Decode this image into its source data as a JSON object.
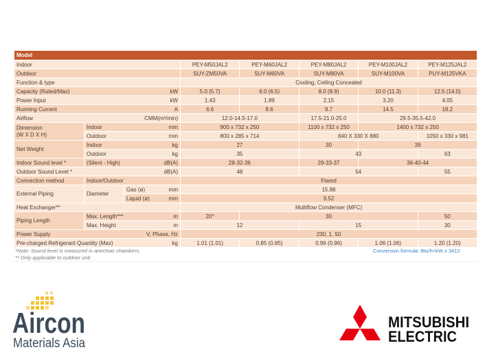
{
  "table": {
    "header": "Model",
    "rows": [
      {
        "label": "Indoor",
        "values": [
          "PEY-M50JAL2",
          "PEY-M60JAL2",
          "PEY-M80JAL2",
          "PEY-M100JAL2",
          "PEY-M125JAL2"
        ]
      },
      {
        "label": "Outdoor",
        "values": [
          "SUY-ZM50VA",
          "SUY-M60VA",
          "SUY-M80VA",
          "SUY-M100VA",
          "PUY-M125VKA"
        ]
      },
      {
        "label": "Function & type",
        "values": [
          "Cooling, Ceiling Concealed",
          null,
          null,
          null,
          null
        ]
      },
      {
        "label": "Capacity (Rated/Max)",
        "unit": "kW",
        "values": [
          "5.0 (5.7)",
          "6.0 (6.5)",
          "8.0 (8.9)",
          "10.0 (11.3)",
          "12.5 (14.0)"
        ]
      },
      {
        "label": "Power Input",
        "unit": "kW",
        "values": [
          "1.43",
          "1.89",
          "2.15",
          "3.20",
          "4.05"
        ]
      },
      {
        "label": "Running Current",
        "unit": "A",
        "values": [
          "6.6",
          "8.6",
          "9.7",
          "14.5",
          "18.2"
        ]
      },
      {
        "label": "Airflow",
        "unit": "CMM(m³/min)",
        "values": [
          "12.0-14.5-17.0",
          null,
          "17.5-21.0-25.0",
          "29.5-35.5-42.0",
          null
        ]
      },
      {
        "label": "Dimension\n(W X D X H)",
        "sub": "Indoor",
        "unit": "mm",
        "values": [
          "900 x 732 x 250",
          null,
          "1100 x 732 x 250",
          "1400 x 732 x 250",
          null
        ]
      },
      {
        "sub": "Outdoor",
        "unit": "mm",
        "values": [
          "800 x 285 x 714",
          null,
          "840 X 330 X 880",
          null,
          "1050 x 330 x 981"
        ]
      },
      {
        "label": "Net Weight",
        "sub": "Indoor",
        "unit": "kg",
        "values": [
          "27",
          null,
          "30",
          "39",
          null
        ]
      },
      {
        "sub": "Outdoor",
        "unit": "kg",
        "values": [
          "35",
          null,
          "43",
          null,
          "63"
        ]
      },
      {
        "label": "Indoor Sound level *",
        "sub": "(Silent - High)",
        "unit": "dB(A)",
        "values": [
          "28-32-36",
          null,
          "29-33-37",
          "36-40-44",
          null
        ]
      },
      {
        "label": "Outdoor Sound Level *",
        "unit": "dB(A)",
        "values": [
          "48",
          null,
          "54",
          null,
          "55"
        ]
      },
      {
        "label": "Connection method",
        "sub": "Indoor/Outdoor",
        "values": [
          "Flared",
          null,
          null,
          null,
          null
        ]
      },
      {
        "label": "External Piping",
        "sub": "Diameter",
        "subsub": "Gas (ø)",
        "unit": "mm",
        "values": [
          "15.88",
          null,
          null,
          null,
          null
        ]
      },
      {
        "subsub": "Liquid (ø)",
        "unit": "mm",
        "values": [
          "9.52",
          null,
          null,
          null,
          null
        ]
      },
      {
        "label": "Heat Exchanger**",
        "values": [
          "Multiflow Condenser (MFC)",
          null,
          null,
          null,
          null
        ]
      },
      {
        "label": "Piping Length",
        "sub": "Max. Length***",
        "unit": "m",
        "values": [
          "20^",
          "30",
          null,
          null,
          "50"
        ]
      },
      {
        "sub": "Max. Height",
        "unit": "m",
        "values": [
          "12",
          null,
          "15",
          null,
          "30"
        ]
      },
      {
        "label": "Power Supply",
        "unit": "V, Phase, Hz",
        "values": [
          "230, 1, 50",
          null,
          null,
          null,
          null
        ]
      },
      {
        "label": "Pre-charged Refrigerant Quantity (Max)",
        "unit": "kg",
        "values": [
          "1.01 (1.01)",
          "0.85 (0.85)",
          "0.96 (0.96)",
          "1.06 (1.06)",
          "1.20 (1.20)"
        ]
      }
    ]
  },
  "notes": [
    "*Note: Sound level is measured in anechoic chambers.",
    "** Only applicable to outdoor unit."
  ],
  "conversion": "Conversion formula: Btu/h=kW x 3412",
  "logos": {
    "aircon": {
      "name": "Aircon",
      "tagline": "Materials Asia"
    },
    "mitsubishi": [
      "MITSUBISHI",
      "ELECTRIC"
    ]
  }
}
